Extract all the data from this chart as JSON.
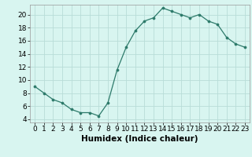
{
  "x": [
    0,
    1,
    2,
    3,
    4,
    5,
    6,
    7,
    8,
    9,
    10,
    11,
    12,
    13,
    14,
    15,
    16,
    17,
    18,
    19,
    20,
    21,
    22,
    23
  ],
  "y": [
    9,
    8,
    7,
    6.5,
    5.5,
    5,
    5,
    4.5,
    6.5,
    11.5,
    15,
    17.5,
    19,
    19.5,
    21,
    20.5,
    20,
    19.5,
    20,
    19,
    18.5,
    16.5,
    15.5,
    15
  ],
  "line_color": "#2d7a6a",
  "marker_color": "#2d7a6a",
  "bg_color": "#d8f5f0",
  "grid_color": "#b8ddd8",
  "xlabel": "Humidex (Indice chaleur)",
  "xlim": [
    -0.5,
    23.5
  ],
  "ylim": [
    3.5,
    21.5
  ],
  "yticks": [
    4,
    6,
    8,
    10,
    12,
    14,
    16,
    18,
    20
  ],
  "xticks": [
    0,
    1,
    2,
    3,
    4,
    5,
    6,
    7,
    8,
    9,
    10,
    11,
    12,
    13,
    14,
    15,
    16,
    17,
    18,
    19,
    20,
    21,
    22,
    23
  ],
  "tick_fontsize": 6.5,
  "label_fontsize": 7.5
}
